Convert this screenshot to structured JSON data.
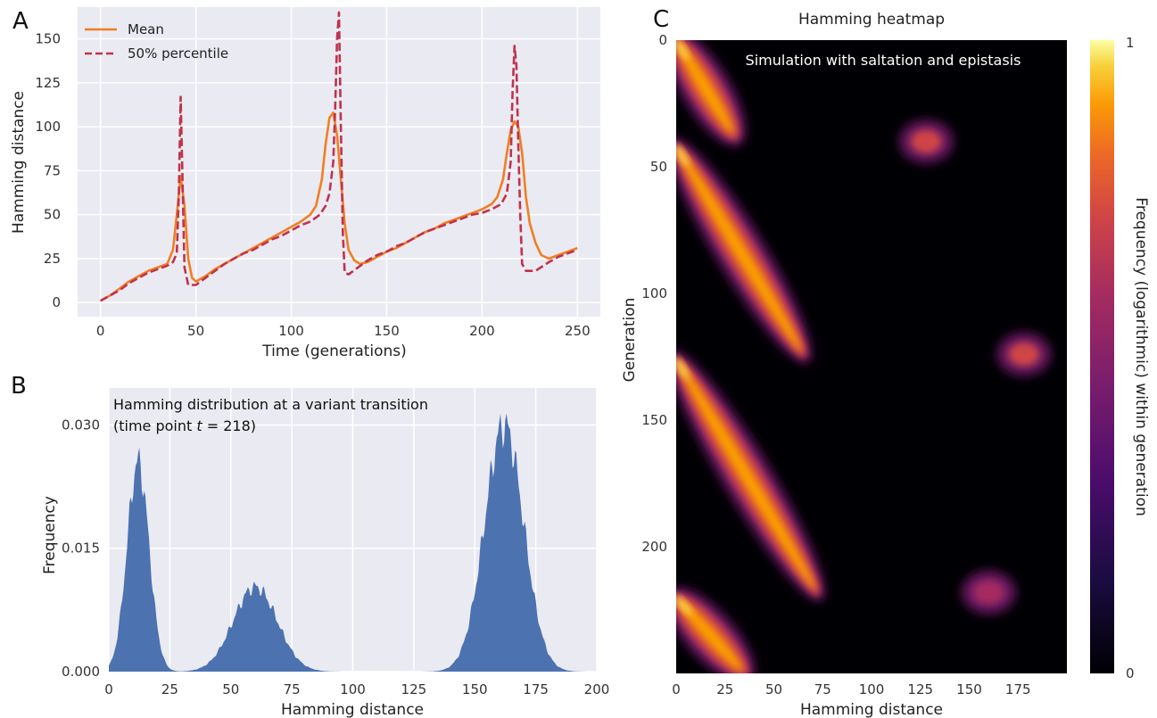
{
  "panels": {
    "a": "A",
    "b": "B",
    "c": "C"
  },
  "chart_data": [
    {
      "type": "line",
      "xlabel": "Time (generations)",
      "ylabel": "Hamming distance",
      "xlim": [
        -12,
        262
      ],
      "ylim": [
        -8,
        168
      ],
      "xticks": [
        0,
        50,
        100,
        150,
        200,
        250
      ],
      "yticks": [
        0,
        25,
        50,
        75,
        100,
        125,
        150
      ],
      "grid": true,
      "legend": "top-left",
      "series": [
        {
          "name": "Mean",
          "color": "#f07f22",
          "style": "solid",
          "points": [
            [
              0,
              1
            ],
            [
              5,
              4
            ],
            [
              10,
              8
            ],
            [
              15,
              12
            ],
            [
              20,
              15
            ],
            [
              25,
              18
            ],
            [
              30,
              20
            ],
            [
              35,
              22
            ],
            [
              38,
              30
            ],
            [
              40,
              50
            ],
            [
              42,
              72
            ],
            [
              44,
              55
            ],
            [
              46,
              25
            ],
            [
              48,
              14
            ],
            [
              50,
              12
            ],
            [
              55,
              15
            ],
            [
              60,
              19
            ],
            [
              65,
              22
            ],
            [
              70,
              25
            ],
            [
              75,
              28
            ],
            [
              80,
              31
            ],
            [
              85,
              34
            ],
            [
              90,
              37
            ],
            [
              95,
              40
            ],
            [
              100,
              43
            ],
            [
              105,
              46
            ],
            [
              110,
              50
            ],
            [
              113,
              55
            ],
            [
              116,
              70
            ],
            [
              118,
              90
            ],
            [
              120,
              105
            ],
            [
              122,
              108
            ],
            [
              124,
              95
            ],
            [
              126,
              70
            ],
            [
              128,
              45
            ],
            [
              130,
              30
            ],
            [
              133,
              24
            ],
            [
              136,
              22
            ],
            [
              140,
              23
            ],
            [
              145,
              26
            ],
            [
              150,
              29
            ],
            [
              155,
              31
            ],
            [
              160,
              34
            ],
            [
              165,
              37
            ],
            [
              170,
              40
            ],
            [
              175,
              42
            ],
            [
              180,
              45
            ],
            [
              185,
              47
            ],
            [
              190,
              49
            ],
            [
              195,
              51
            ],
            [
              200,
              53
            ],
            [
              205,
              56
            ],
            [
              208,
              60
            ],
            [
              211,
              70
            ],
            [
              213,
              85
            ],
            [
              215,
              98
            ],
            [
              217,
              103
            ],
            [
              219,
              100
            ],
            [
              221,
              85
            ],
            [
              223,
              60
            ],
            [
              225,
              45
            ],
            [
              228,
              34
            ],
            [
              231,
              27
            ],
            [
              235,
              25
            ],
            [
              240,
              27
            ],
            [
              245,
              29
            ],
            [
              250,
              31
            ]
          ]
        },
        {
          "name": "50% percentile",
          "color": "#c0334d",
          "style": "dashed",
          "points": [
            [
              0,
              1
            ],
            [
              5,
              4
            ],
            [
              10,
              7
            ],
            [
              15,
              11
            ],
            [
              20,
              14
            ],
            [
              25,
              17
            ],
            [
              30,
              19
            ],
            [
              35,
              21
            ],
            [
              38,
              23
            ],
            [
              40,
              28
            ],
            [
              41,
              60
            ],
            [
              42,
              117
            ],
            [
              43,
              70
            ],
            [
              44,
              20
            ],
            [
              46,
              10
            ],
            [
              50,
              10
            ],
            [
              55,
              14
            ],
            [
              60,
              18
            ],
            [
              65,
              22
            ],
            [
              70,
              25
            ],
            [
              75,
              28
            ],
            [
              80,
              30
            ],
            [
              85,
              33
            ],
            [
              90,
              36
            ],
            [
              95,
              38
            ],
            [
              100,
              41
            ],
            [
              105,
              44
            ],
            [
              110,
              46
            ],
            [
              115,
              50
            ],
            [
              118,
              55
            ],
            [
              120,
              62
            ],
            [
              122,
              80
            ],
            [
              123,
              110
            ],
            [
              124,
              150
            ],
            [
              125,
              165
            ],
            [
              126,
              100
            ],
            [
              127,
              40
            ],
            [
              128,
              17
            ],
            [
              130,
              16
            ],
            [
              135,
              20
            ],
            [
              140,
              24
            ],
            [
              145,
              27
            ],
            [
              150,
              29
            ],
            [
              155,
              32
            ],
            [
              160,
              34
            ],
            [
              165,
              37
            ],
            [
              170,
              40
            ],
            [
              175,
              42
            ],
            [
              180,
              44
            ],
            [
              185,
              46
            ],
            [
              190,
              48
            ],
            [
              195,
              50
            ],
            [
              200,
              51
            ],
            [
              205,
              53
            ],
            [
              210,
              56
            ],
            [
              213,
              62
            ],
            [
              215,
              80
            ],
            [
              216,
              120
            ],
            [
              217,
              146
            ],
            [
              218,
              135
            ],
            [
              219,
              90
            ],
            [
              220,
              50
            ],
            [
              221,
              22
            ],
            [
              223,
              18
            ],
            [
              228,
              18
            ],
            [
              235,
              23
            ],
            [
              240,
              26
            ],
            [
              245,
              28
            ],
            [
              250,
              30
            ]
          ]
        }
      ]
    },
    {
      "type": "area",
      "xlabel": "Hamming distance",
      "ylabel": "Frequency",
      "annotation_line1": "Hamming distribution at a variant transition",
      "annotation_line2": "(time point t = 218)",
      "xlim": [
        0,
        200
      ],
      "ylim": [
        0,
        0.0345
      ],
      "xticks": [
        0,
        25,
        50,
        75,
        100,
        125,
        150,
        175,
        200
      ],
      "yticks": [
        "0.000",
        "0.015",
        "0.030"
      ],
      "ytick_values": [
        0,
        0.015,
        0.03
      ],
      "grid": true,
      "fill_color": "#4c72b0",
      "peaks": [
        {
          "center": 12,
          "width": 4.5,
          "height": 0.0255
        },
        {
          "center": 60,
          "width": 9,
          "height": 0.0103
        },
        {
          "center": 162,
          "width": 8,
          "height": 0.03
        }
      ]
    },
    {
      "type": "heatmap",
      "title": "Hamming heatmap",
      "annotation": "Simulation with saltation and epistasis",
      "xlabel": "Hamming distance",
      "ylabel": "Generation",
      "xlim": [
        0,
        200
      ],
      "ylim": [
        0,
        250
      ],
      "xticks": [
        0,
        25,
        50,
        75,
        100,
        125,
        150,
        175
      ],
      "yticks": [
        0,
        50,
        100,
        150,
        200
      ],
      "colormap": "inferno",
      "colorbar_label": "Frequency (logarithmic) within generation",
      "colorbar_ticks": [
        "0",
        "1"
      ],
      "bands": [
        {
          "gen_start": 0,
          "gen_end": 38,
          "x_start": 0,
          "x_end": 30
        },
        {
          "gen_start": 42,
          "gen_end": 124,
          "x_start": 0,
          "x_end": 65
        },
        {
          "gen_start": 126,
          "gen_end": 218,
          "x_start": 0,
          "x_end": 72
        },
        {
          "gen_start": 220,
          "gen_end": 250,
          "x_start": 0,
          "x_end": 35
        }
      ],
      "blobs": [
        {
          "gen": 40,
          "x": 128,
          "intensity": 0.75
        },
        {
          "gen": 124,
          "x": 178,
          "intensity": 0.72
        },
        {
          "gen": 218,
          "x": 160,
          "intensity": 0.55
        }
      ]
    }
  ]
}
